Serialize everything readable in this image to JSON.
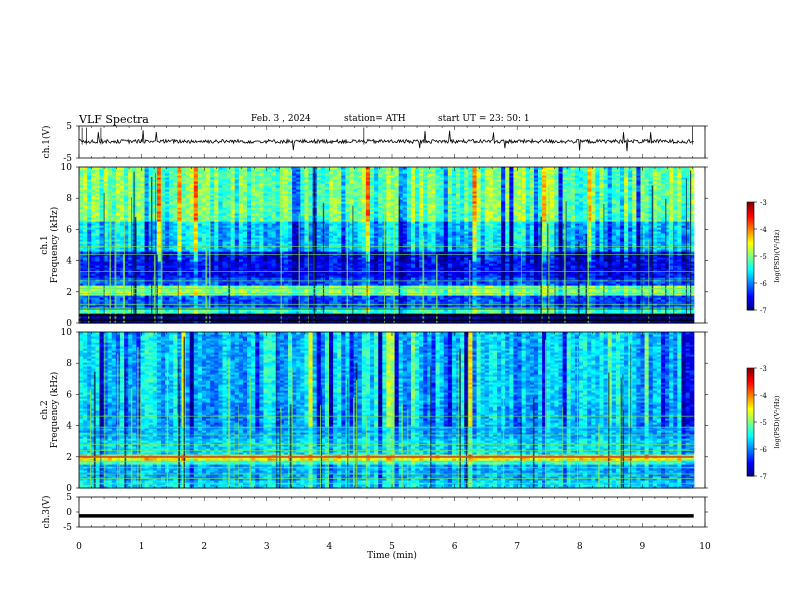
{
  "header": {
    "title": "VLF  Spectra",
    "date": "Feb. 3  , 2024",
    "station": "station= ATH",
    "start": "start  UT  =    23: 50: 1"
  },
  "chart_data": [
    {
      "type": "line",
      "name": "ch1-waveform",
      "ylabel": "ch.1(V)",
      "ylim": [
        -5,
        5
      ],
      "yticks": [
        "5",
        "-5"
      ],
      "xlim": [
        0,
        10
      ],
      "x_end": 9.82,
      "level": 0.2,
      "color": "#000000"
    },
    {
      "type": "heatmap",
      "name": "ch1-spectrogram",
      "ylabel": "ch.1\nFrequency  (kHz)",
      "ylim": [
        0,
        10
      ],
      "yticks": [
        "0",
        "2",
        "4",
        "6",
        "8",
        "10"
      ],
      "xlim": [
        0,
        10
      ],
      "x_end": 9.82,
      "colorbar": {
        "label": "log(PSD)(V²/Hz)",
        "range": [
          -7,
          -3
        ],
        "ticks": [
          "-3",
          "-4",
          "-5",
          "-6",
          "-7"
        ]
      },
      "bands": [
        {
          "f": [
            0,
            0.6
          ],
          "level": -6.9
        },
        {
          "f": [
            0.6,
            1.0
          ],
          "level": -5.3
        },
        {
          "f": [
            1.0,
            1.8
          ],
          "level": -6.2
        },
        {
          "f": [
            1.8,
            2.4
          ],
          "level": -5.0
        },
        {
          "f": [
            2.4,
            3.0
          ],
          "level": -6.2
        },
        {
          "f": [
            3.0,
            4.6
          ],
          "level": -6.5
        },
        {
          "f": [
            4.6,
            6.5
          ],
          "level": -5.7
        },
        {
          "f": [
            6.5,
            10.0
          ],
          "level": -5.1
        }
      ]
    },
    {
      "type": "heatmap",
      "name": "ch2-spectrogram",
      "ylabel": "ch.2\nFrequency  (kHz)",
      "ylim": [
        0,
        10
      ],
      "yticks": [
        "0",
        "2",
        "4",
        "6",
        "8",
        "10"
      ],
      "xlim": [
        0,
        10
      ],
      "x_end": 9.82,
      "colorbar": {
        "label": "log(PSD)(V²/Hz)",
        "range": [
          -7,
          -3
        ],
        "ticks": [
          "-3",
          "-4",
          "-5",
          "-6",
          "-7"
        ]
      },
      "bands": [
        {
          "f": [
            0,
            0.5
          ],
          "level": -5.6
        },
        {
          "f": [
            0.5,
            1.6
          ],
          "level": -5.8
        },
        {
          "f": [
            1.6,
            1.8
          ],
          "level": -5.2
        },
        {
          "f": [
            1.8,
            2.2
          ],
          "level": -4.4
        },
        {
          "f": [
            2.2,
            3.2
          ],
          "level": -5.6
        },
        {
          "f": [
            3.2,
            5.5
          ],
          "level": -5.8
        },
        {
          "f": [
            5.5,
            10.0
          ],
          "level": -5.7
        }
      ]
    },
    {
      "type": "line",
      "name": "ch3-waveform",
      "ylabel": "ch.3(V)",
      "ylim": [
        -5,
        5
      ],
      "yticks": [
        "5",
        "0",
        "-5"
      ],
      "xlim": [
        0,
        10
      ],
      "x_end": 9.82,
      "level": -1.3,
      "color": "#000000"
    }
  ],
  "xaxis": {
    "label": "Time  (min)",
    "ticks": [
      "0",
      "1",
      "2",
      "3",
      "4",
      "5",
      "6",
      "7",
      "8",
      "9",
      "10"
    ]
  }
}
